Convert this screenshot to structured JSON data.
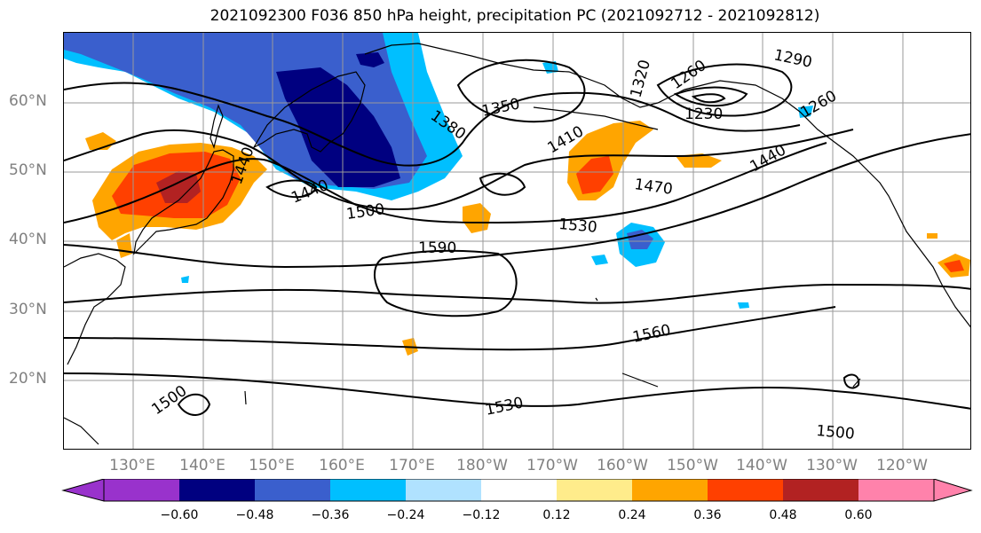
{
  "title": "2021092300 F036 850 hPa height, precipitation PC (2021092712 - 2021092812)",
  "latitude_labels": [
    "60°N",
    "50°N",
    "40°N",
    "30°N",
    "20°N"
  ],
  "longitude_labels": [
    "130°E",
    "140°E",
    "150°E",
    "160°E",
    "170°E",
    "180°W",
    "170°W",
    "160°W",
    "150°W",
    "140°W",
    "130°W",
    "120°W"
  ],
  "contour_labels": [
    "1590",
    "1560",
    "1530",
    "1530",
    "1500",
    "1500",
    "1500",
    "1470",
    "1440",
    "1440",
    "1410",
    "1380",
    "1350",
    "1320",
    "1290",
    "1260",
    "1230",
    "1260",
    "1440"
  ],
  "colorbar": {
    "ticks": [
      "−0.60",
      "−0.48",
      "−0.36",
      "−0.24",
      "−0.12",
      "0.12",
      "0.24",
      "0.36",
      "0.48",
      "0.60"
    ],
    "colors": [
      "#9932cc",
      "#000080",
      "#3a5fcd",
      "#00bfff",
      "#b0e2ff",
      "#ffffff",
      "#ffec8b",
      "#ffa500",
      "#ff4000",
      "#b22222",
      "#ff82ab"
    ]
  }
}
